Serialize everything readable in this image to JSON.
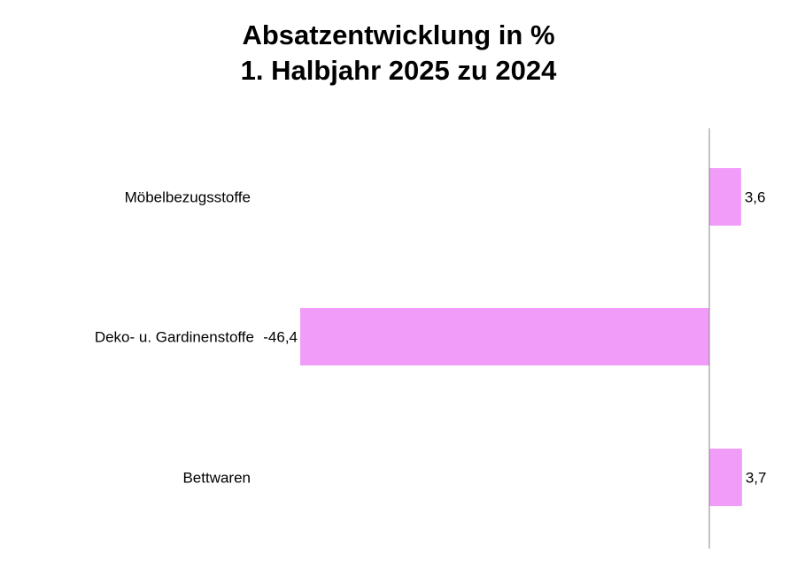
{
  "chart_data": {
    "type": "bar",
    "orientation": "horizontal",
    "title": [
      "Absatzentwicklung in %",
      "1. Halbjahr 2025 zu 2024"
    ],
    "categories": [
      "Möbelbezugsstoffe",
      "Deko- u. Gardinenstoffe",
      "Bettwaren"
    ],
    "values": [
      3.6,
      -46.4,
      3.7
    ],
    "data_labels": [
      "3,6",
      "-46,4",
      "3,7"
    ],
    "xlabel": "",
    "ylabel": "",
    "xlim": [
      -46.4,
      4
    ],
    "grid": false,
    "legend": "none",
    "bar_color": "#f09cf8"
  }
}
